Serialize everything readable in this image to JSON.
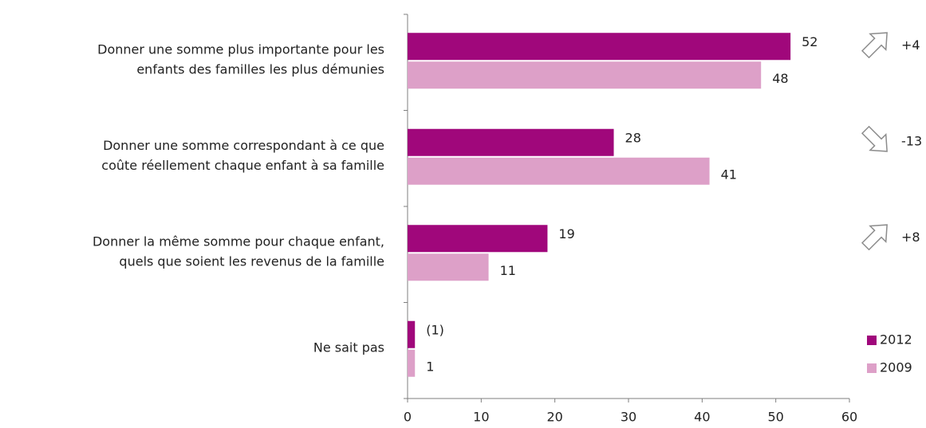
{
  "chart_data": {
    "type": "bar",
    "orientation": "horizontal",
    "categories": [
      [
        "Donner une somme plus importante pour les",
        "enfants des familles les plus démunies"
      ],
      [
        "Donner une somme correspondant à ce que",
        "coûte réellement chaque enfant à sa famille"
      ],
      [
        "Donner la même somme pour chaque enfant,",
        "quels que soient les revenus de la famille"
      ],
      [
        "Ne sait pas"
      ]
    ],
    "series": [
      {
        "name": "2012",
        "color": "#a0077b",
        "values": [
          52,
          28,
          19,
          1
        ],
        "value_labels": [
          "52",
          "28",
          "19",
          "(1)"
        ]
      },
      {
        "name": "2009",
        "color": "#dda0c8",
        "values": [
          48,
          41,
          11,
          1
        ]
      }
    ],
    "changes": [
      {
        "direction": "up",
        "label": "+4"
      },
      {
        "direction": "down",
        "label": "-13"
      },
      {
        "direction": "up",
        "label": "+8"
      }
    ],
    "xlim": [
      0,
      60
    ],
    "xticks": [
      0,
      10,
      20,
      30,
      40,
      50,
      60
    ],
    "grid": false,
    "legend": "lower right"
  }
}
